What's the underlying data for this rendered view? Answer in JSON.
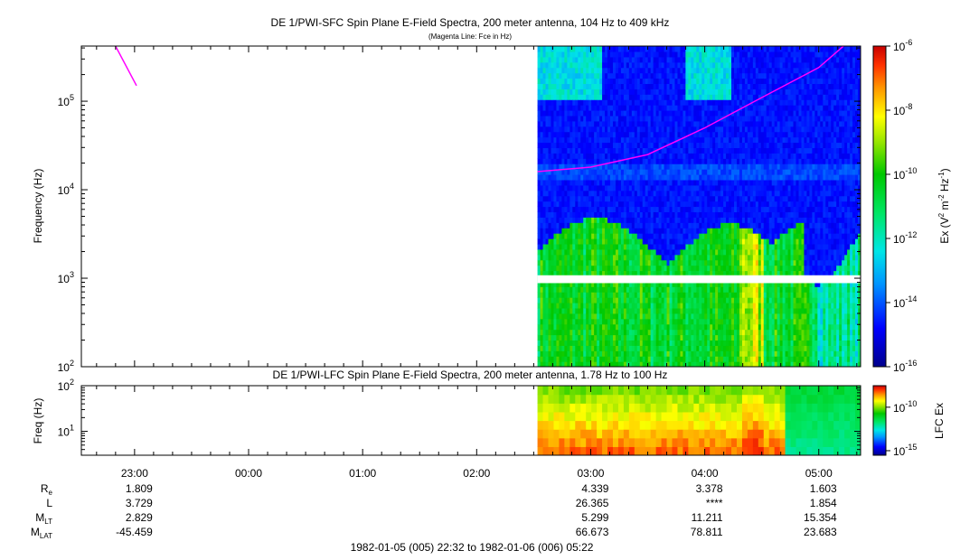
{
  "chart_data": [
    {
      "type": "heatmap",
      "title": "DE 1/PWI-SFC  Spin Plane E-Field Spectra, 200 meter antenna, 104 Hz to 409 kHz",
      "subtitle": "(Magenta Line: Fce in Hz)",
      "ylabel": "Frequency (Hz)",
      "y_scale": "log",
      "ylim": [
        100,
        420000
      ],
      "y_ticks": [
        {
          "value": 100,
          "base": "10",
          "exp": "2"
        },
        {
          "value": 1000,
          "base": "10",
          "exp": "3"
        },
        {
          "value": 10000,
          "base": "10",
          "exp": "4"
        },
        {
          "value": 100000,
          "base": "10",
          "exp": "5"
        }
      ],
      "xlim": [
        "1982-01-05 22:32",
        "1982-01-06 05:22"
      ],
      "data_start": "1982-01-06 02:32",
      "colorbar": {
        "label_prefix": "Ex (V",
        "label_exp1": "2",
        "label_mid": " m",
        "label_exp2": "-2",
        "label_mid2": " Hz",
        "label_exp3": "-1",
        "label_suffix": ")",
        "scale": "log",
        "range": [
          1e-16,
          1e-06
        ],
        "ticks": [
          {
            "value": 1e-06,
            "base": "10",
            "exp": "-6"
          },
          {
            "value": 1e-08,
            "base": "10",
            "exp": "-8"
          },
          {
            "value": 1e-10,
            "base": "10",
            "exp": "-10"
          },
          {
            "value": 1e-12,
            "base": "10",
            "exp": "-12"
          },
          {
            "value": 1e-14,
            "base": "10",
            "exp": "-14"
          },
          {
            "value": 1e-16,
            "base": "10",
            "exp": "-16"
          }
        ]
      },
      "fce_line": {
        "name": "Fce",
        "color": "#ff00ff",
        "segments": [
          [
            [
              "1982-01-05 22:50",
              420000
            ],
            [
              "1982-01-05 23:01",
              150000
            ]
          ],
          [
            [
              "1982-01-06 02:32",
              16000
            ],
            [
              "1982-01-06 03:00",
              18000
            ],
            [
              "1982-01-06 03:30",
              25000
            ],
            [
              "1982-01-06 04:00",
              50000
            ],
            [
              "1982-01-06 04:30",
              110000
            ],
            [
              "1982-01-06 05:00",
              240000
            ],
            [
              "1982-01-06 05:13",
              420000
            ]
          ]
        ]
      }
    },
    {
      "type": "heatmap",
      "title": "DE 1/PWI-LFC  Spin Plane E-Field Spectra, 200 meter antenna, 1.78 Hz to 100 Hz",
      "ylabel": "Freq (Hz)",
      "y_scale": "log",
      "ylim": [
        3,
        100
      ],
      "y_ticks": [
        {
          "value": 10,
          "base": "10",
          "exp": "1"
        },
        {
          "value": 100,
          "base": "10",
          "exp": "2"
        }
      ],
      "data_start": "1982-01-06 02:32",
      "colorbar": {
        "label": "LFC Ex",
        "scale": "log",
        "ticks": [
          {
            "value": 1e-10,
            "base": "10",
            "exp": "-10"
          },
          {
            "value": 1e-15,
            "base": "10",
            "exp": "-15"
          }
        ]
      }
    }
  ],
  "x_axis": {
    "ticks": [
      "23:00",
      "00:00",
      "01:00",
      "02:00",
      "03:00",
      "04:00",
      "05:00"
    ],
    "range_label": "1982-01-05 (005) 22:32 to 1982-01-06 (006) 05:22"
  },
  "ephemeris": {
    "labels": [
      {
        "main": "R",
        "sub": "e"
      },
      {
        "main": "L",
        "sub": ""
      },
      {
        "main": "M",
        "sub": "LT"
      },
      {
        "main": "M",
        "sub": "LAT"
      }
    ],
    "columns": [
      {
        "time": "23:00",
        "values": [
          "1.809",
          "3.729",
          "2.829",
          "-45.459"
        ]
      },
      {
        "time": "03:00",
        "values": [
          "4.339",
          "26.365",
          "5.299",
          "66.673"
        ]
      },
      {
        "time": "04:00",
        "values": [
          "3.378",
          "****",
          "11.211",
          "78.811"
        ]
      },
      {
        "time": "05:00",
        "values": [
          "1.603",
          "1.854",
          "15.354",
          "23.683"
        ]
      }
    ]
  }
}
